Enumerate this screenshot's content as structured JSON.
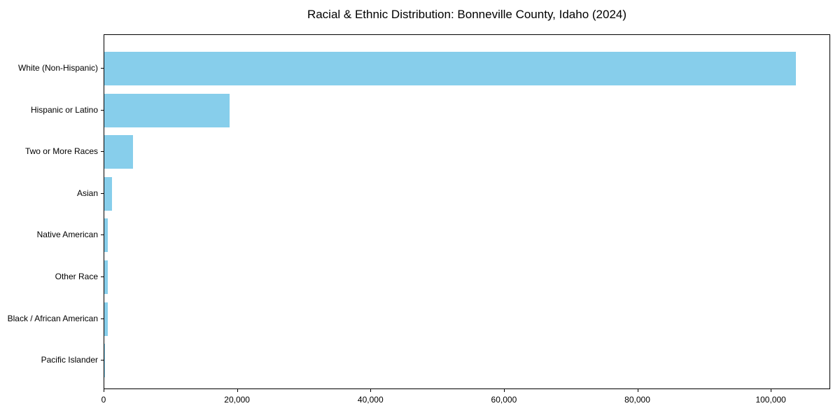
{
  "chart_data": {
    "type": "bar",
    "orientation": "horizontal",
    "title": "Racial & Ethnic Distribution: Bonneville County, Idaho (2024)",
    "categories": [
      "White (Non-Hispanic)",
      "Hispanic or Latino",
      "Two or More Races",
      "Asian",
      "Native American",
      "Other Race",
      "Black / African American",
      "Pacific Islander"
    ],
    "values": [
      103700,
      18800,
      4300,
      1150,
      560,
      520,
      490,
      120
    ],
    "bar_color": "#87CEEB",
    "xlabel": "",
    "ylabel": "",
    "xlim": [
      0,
      108900
    ],
    "xticks": [
      0,
      20000,
      40000,
      60000,
      80000,
      100000
    ],
    "xticklabels": [
      "0",
      "20,000",
      "40,000",
      "60,000",
      "80,000",
      "100,000"
    ],
    "grid": false,
    "legend": "none",
    "axis_color": "#000000",
    "background_color": "#ffffff"
  }
}
